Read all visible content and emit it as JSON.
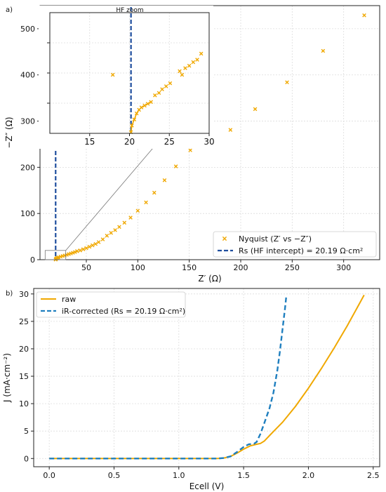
{
  "chart_data": [
    {
      "panel_label": "a)",
      "type": "scatter",
      "xlabel": "Z′ (Ω)",
      "ylabel": "−Z″ (Ω)",
      "xlim": [
        5,
        335
      ],
      "ylim": [
        0,
        550
      ],
      "xticks": [
        50,
        100,
        150,
        200,
        250,
        300
      ],
      "yticks": [
        0,
        100,
        200,
        300,
        400,
        500
      ],
      "grid": true,
      "legend_position": "bottom-right",
      "series": [
        {
          "name": "Nyquist (Z′ vs −Z″)",
          "color": "#f0a800",
          "marker": "x",
          "points": [
            [
              20.19,
              0.2
            ],
            [
              20.4,
              1.5
            ],
            [
              21,
              3
            ],
            [
              22,
              4
            ],
            [
              23,
              5
            ],
            [
              25,
              6.5
            ],
            [
              27,
              8
            ],
            [
              29,
              9
            ],
            [
              31,
              10.5
            ],
            [
              33,
              12
            ],
            [
              35,
              13.5
            ],
            [
              37,
              15
            ],
            [
              39,
              16.5
            ],
            [
              41,
              18.5
            ],
            [
              44,
              20
            ],
            [
              47,
              22.5
            ],
            [
              50,
              25
            ],
            [
              53,
              28
            ],
            [
              56,
              31
            ],
            [
              59,
              34
            ],
            [
              62,
              38
            ],
            [
              66,
              44
            ],
            [
              70,
              52
            ],
            [
              74,
              58
            ],
            [
              78,
              64
            ],
            [
              82,
              71
            ],
            [
              87,
              80
            ],
            [
              93,
              91
            ],
            [
              100,
              106
            ],
            [
              108,
              124
            ],
            [
              116,
              145
            ],
            [
              126,
              172
            ],
            [
              137,
              202
            ],
            [
              151,
              237
            ],
            [
              168,
              272
            ],
            [
              190,
              281
            ],
            [
              214,
              326
            ],
            [
              245,
              384
            ],
            [
              280,
              452
            ],
            [
              320,
              529
            ]
          ]
        },
        {
          "name": "Rs (HF intercept) = 20.19 Ω·cm²",
          "color": "#1f4e9e",
          "style": "dashed",
          "x": 20.19
        }
      ],
      "inset": {
        "title": "HF zoom",
        "xlim": [
          10,
          30
        ],
        "ylim": [
          0,
          20
        ],
        "xticks": [
          15,
          20,
          25,
          30
        ],
        "points": [
          [
            17.9,
            9.7
          ],
          [
            20.19,
            0.2
          ],
          [
            20.3,
            1.3
          ],
          [
            20.6,
            2.3
          ],
          [
            20.9,
            3.3
          ],
          [
            21.2,
            3.9
          ],
          [
            21.5,
            4.3
          ],
          [
            21.9,
            4.6
          ],
          [
            22.3,
            4.9
          ],
          [
            22.7,
            5.2
          ],
          [
            23.2,
            6.3
          ],
          [
            23.7,
            6.7
          ],
          [
            24.1,
            7.3
          ],
          [
            24.6,
            7.8
          ],
          [
            25.1,
            8.3
          ],
          [
            26.3,
            10.3
          ],
          [
            26.6,
            9.7
          ],
          [
            27.0,
            10.8
          ],
          [
            27.5,
            11.2
          ],
          [
            28.0,
            11.8
          ],
          [
            28.5,
            12.2
          ],
          [
            29.0,
            13.2
          ]
        ],
        "rs_x": 20.19
      }
    },
    {
      "panel_label": "b)",
      "type": "line",
      "xlabel": "Ecell (V)",
      "ylabel": "J (mA·cm⁻²)",
      "xlim": [
        -0.12,
        2.55
      ],
      "ylim": [
        -1.5,
        31
      ],
      "xticks": [
        0.0,
        0.5,
        1.0,
        1.5,
        2.0,
        2.5
      ],
      "yticks": [
        0,
        5,
        10,
        15,
        20,
        25,
        30
      ],
      "grid": true,
      "legend_position": "top-left",
      "series": [
        {
          "name": "raw",
          "color": "#f0a800",
          "style": "solid",
          "x": [
            0,
            0.5,
            1.0,
            1.3,
            1.35,
            1.4,
            1.45,
            1.5,
            1.55,
            1.6,
            1.63,
            1.66,
            1.7,
            1.75,
            1.8,
            1.9,
            2.0,
            2.1,
            2.2,
            2.3,
            2.4,
            2.43
          ],
          "y": [
            0,
            0,
            0,
            0,
            0.1,
            0.4,
            1.0,
            1.7,
            2.3,
            2.6,
            2.75,
            3.2,
            4.2,
            5.4,
            6.6,
            9.5,
            12.8,
            16.4,
            20.2,
            24.2,
            28.5,
            29.8
          ]
        },
        {
          "name": "iR-corrected (Rs = 20.19 Ω·cm²)",
          "color": "#1f7fbf",
          "style": "dashed",
          "x": [
            0,
            0.5,
            1.0,
            1.3,
            1.35,
            1.4,
            1.45,
            1.5,
            1.54,
            1.58,
            1.6,
            1.63,
            1.66,
            1.7,
            1.73,
            1.76,
            1.78,
            1.8,
            1.82,
            1.83
          ],
          "y": [
            0,
            0,
            0,
            0,
            0.1,
            0.4,
            1.2,
            2.1,
            2.6,
            2.7,
            3.0,
            4.5,
            6.5,
            9.2,
            12.0,
            16.0,
            19.5,
            23.5,
            27.5,
            29.8
          ]
        }
      ]
    }
  ]
}
